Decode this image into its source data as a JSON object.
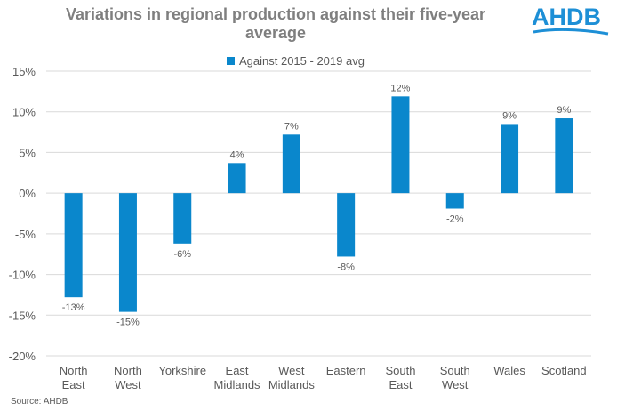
{
  "title": "Variations in regional production against their five-year average",
  "logo_text": "AHDB",
  "source": "Source: AHDB",
  "colors": {
    "bar": "#0a87cc",
    "logo": "#1d8fd6",
    "grid": "#d9d9d9",
    "text": "#595959"
  },
  "chart_data": {
    "type": "bar",
    "title": "Variations in regional production against their five-year average",
    "categories": [
      [
        "North",
        "East"
      ],
      [
        "North",
        "West"
      ],
      [
        "Yorkshire"
      ],
      [
        "East",
        "Midlands"
      ],
      [
        "West",
        "Midlands"
      ],
      [
        "Eastern"
      ],
      [
        "South",
        "East"
      ],
      [
        "South",
        "West"
      ],
      [
        "Wales"
      ],
      [
        "Scotland"
      ]
    ],
    "series": [
      {
        "name": "Against 2015 - 2019 avg",
        "values": [
          -12.8,
          -14.6,
          -6.2,
          3.7,
          7.2,
          -7.8,
          11.9,
          -1.9,
          8.5,
          9.2
        ],
        "labels": [
          "-13%",
          "-15%",
          "-6%",
          "4%",
          "7%",
          "-8%",
          "12%",
          "-2%",
          "9%",
          "9%"
        ]
      }
    ],
    "ylim": [
      -20,
      15
    ],
    "yticks": [
      15,
      10,
      5,
      0,
      -5,
      -10,
      -15,
      -20
    ],
    "ytick_labels": [
      "15%",
      "10%",
      "5%",
      "0%",
      "-5%",
      "-10%",
      "-15%",
      "-20%"
    ],
    "xlabel": "",
    "ylabel": "",
    "grid": true,
    "legend_position": "top"
  }
}
